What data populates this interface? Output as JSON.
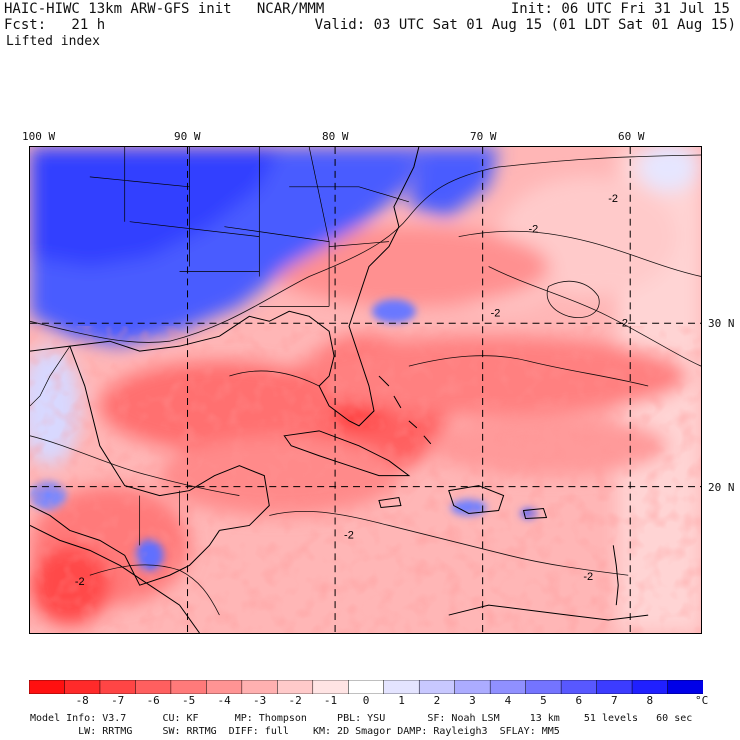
{
  "header": {
    "model_title": "HAIC-HIWC 13km ARW-GFS init   NCAR/MMM",
    "forecast_label": "Fcst:   21 h",
    "field_name": "Lifted index",
    "init_time": "Init: 06 UTC Fri 31 Jul 15",
    "valid_time": "Valid: 03 UTC Sat 01 Aug 15 (01 LDT Sat 01 Aug 15)"
  },
  "map": {
    "longitude_labels": [
      "100 W",
      "90 W",
      "80 W",
      "70 W",
      "60 W"
    ],
    "latitude_labels": [
      "30 N",
      "20 N"
    ],
    "contour_labels": [
      "-2",
      "-2",
      "-2",
      "-2",
      "-2",
      "-2",
      "-2"
    ]
  },
  "colorbar": {
    "ticks": [
      "-8",
      "-7",
      "-6",
      "-5",
      "-4",
      "-3",
      "-2",
      "-1",
      "0",
      "1",
      "2",
      "3",
      "4",
      "5",
      "6",
      "7",
      "8"
    ],
    "unit": "°C",
    "colors": [
      "#ff1010",
      "#ff2a2a",
      "#ff4545",
      "#ff5f5f",
      "#ff7a7a",
      "#ff9494",
      "#ffb0b0",
      "#ffcaca",
      "#ffe4e4",
      "#ffffff",
      "#e4e4ff",
      "#c8c8ff",
      "#acacff",
      "#9090ff",
      "#7474ff",
      "#5858ff",
      "#3c3cff",
      "#2020ff",
      "#0000e8"
    ]
  },
  "footer": {
    "line1": "Model Info: V3.7      CU: KF      MP: Thompson     PBL: YSU       SF: Noah LSM     13 km    51 levels   60 sec",
    "line2": "        LW: RRTMG     SW: RRTMG  DIFF: full    KM: 2D Smagor DAMP: Rayleigh3  SFLAY: MM5"
  }
}
